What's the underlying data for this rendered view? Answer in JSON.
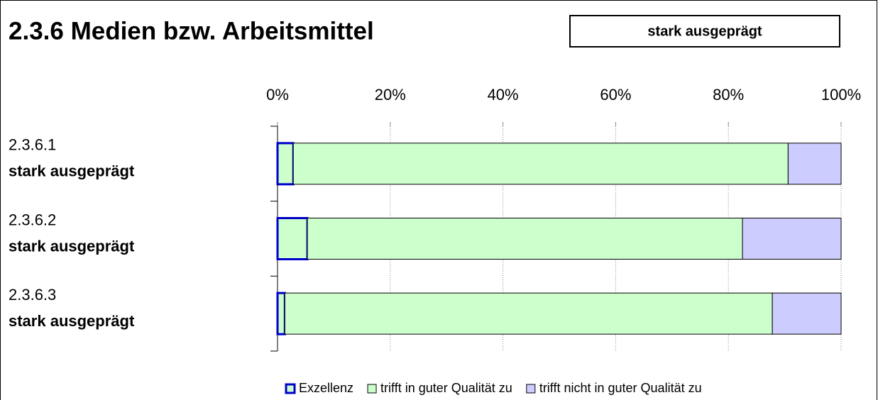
{
  "chart_data": {
    "type": "stacked_barh",
    "title": "2.3.6 Medien bzw. Arbeitsmittel",
    "badge": "stark ausgeprägt",
    "categories": [
      "2.3.6.1",
      "2.3.6.2",
      "2.3.6.3"
    ],
    "category_sublabels": [
      "stark ausgeprägt",
      "stark ausgeprägt",
      "stark ausgeprägt"
    ],
    "series": [
      {
        "name": "Exzellenz",
        "color": "#ccffcc",
        "border_color": "#0000cc",
        "values": [
          2.8,
          5.3,
          1.3
        ]
      },
      {
        "name": "trifft in guter Qualität zu",
        "color": "#ccffcc",
        "border_color": "#000000",
        "values": [
          87.8,
          77.2,
          86.5
        ]
      },
      {
        "name": "trifft nicht in guter Qualität zu",
        "color": "#ccccff",
        "border_color": "#000000",
        "values": [
          9.4,
          17.5,
          12.2
        ]
      }
    ],
    "xlim": [
      0,
      100
    ],
    "xticks": [
      {
        "value": 0,
        "label": "0%"
      },
      {
        "value": 20,
        "label": "20%"
      },
      {
        "value": 40,
        "label": "40%"
      },
      {
        "value": 60,
        "label": "60%"
      },
      {
        "value": 80,
        "label": "80%"
      },
      {
        "value": 100,
        "label": "100%"
      }
    ],
    "grid": true,
    "legend": "bottom"
  }
}
